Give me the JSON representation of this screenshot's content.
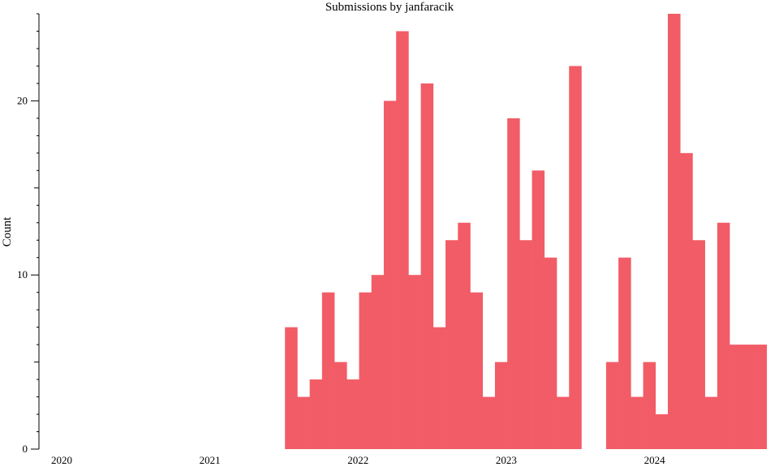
{
  "chart_data": {
    "type": "bar",
    "title": "Submissions by janfaracik",
    "xlabel": "",
    "ylabel": "Count",
    "ylim": [
      0,
      25
    ],
    "xlim": [
      "2020-01-01",
      "2024-12-01"
    ],
    "y_ticks_major": [
      0,
      10,
      20
    ],
    "y_ticks_minor": [
      5,
      15
    ],
    "x_ticks": [
      "2020",
      "2021",
      "2022",
      "2023",
      "2024"
    ],
    "bar_color": "#f25c66",
    "grid": false,
    "legend": "none",
    "bin_months": 1,
    "series": [
      {
        "values": [
          {
            "x": "2021-08",
            "y": 7
          },
          {
            "x": "2021-09",
            "y": 3
          },
          {
            "x": "2021-10",
            "y": 4
          },
          {
            "x": "2021-11",
            "y": 9
          },
          {
            "x": "2021-12",
            "y": 5
          },
          {
            "x": "2022-01",
            "y": 4
          },
          {
            "x": "2022-02",
            "y": 9
          },
          {
            "x": "2022-03",
            "y": 10
          },
          {
            "x": "2022-04",
            "y": 20
          },
          {
            "x": "2022-05",
            "y": 24
          },
          {
            "x": "2022-06",
            "y": 10
          },
          {
            "x": "2022-07",
            "y": 21
          },
          {
            "x": "2022-08",
            "y": 7
          },
          {
            "x": "2022-09",
            "y": 12
          },
          {
            "x": "2022-10",
            "y": 13
          },
          {
            "x": "2022-11",
            "y": 9
          },
          {
            "x": "2022-12",
            "y": 3
          },
          {
            "x": "2023-01",
            "y": 5
          },
          {
            "x": "2023-02",
            "y": 19
          },
          {
            "x": "2023-03",
            "y": 12
          },
          {
            "x": "2023-04",
            "y": 16
          },
          {
            "x": "2023-05",
            "y": 11
          },
          {
            "x": "2023-06",
            "y": 3
          },
          {
            "x": "2023-07",
            "y": 22
          },
          {
            "x": "2023-10",
            "y": 5
          },
          {
            "x": "2023-11",
            "y": 11
          },
          {
            "x": "2023-12",
            "y": 3
          },
          {
            "x": "2024-01",
            "y": 5
          },
          {
            "x": "2024-02",
            "y": 2
          },
          {
            "x": "2024-03",
            "y": 25
          },
          {
            "x": "2024-04",
            "y": 17
          },
          {
            "x": "2024-05",
            "y": 12
          },
          {
            "x": "2024-06",
            "y": 3
          },
          {
            "x": "2024-07",
            "y": 13
          },
          {
            "x": "2024-08",
            "y": 6
          },
          {
            "x": "2024-09",
            "y": 6
          },
          {
            "x": "2024-10",
            "y": 6
          }
        ]
      }
    ]
  }
}
